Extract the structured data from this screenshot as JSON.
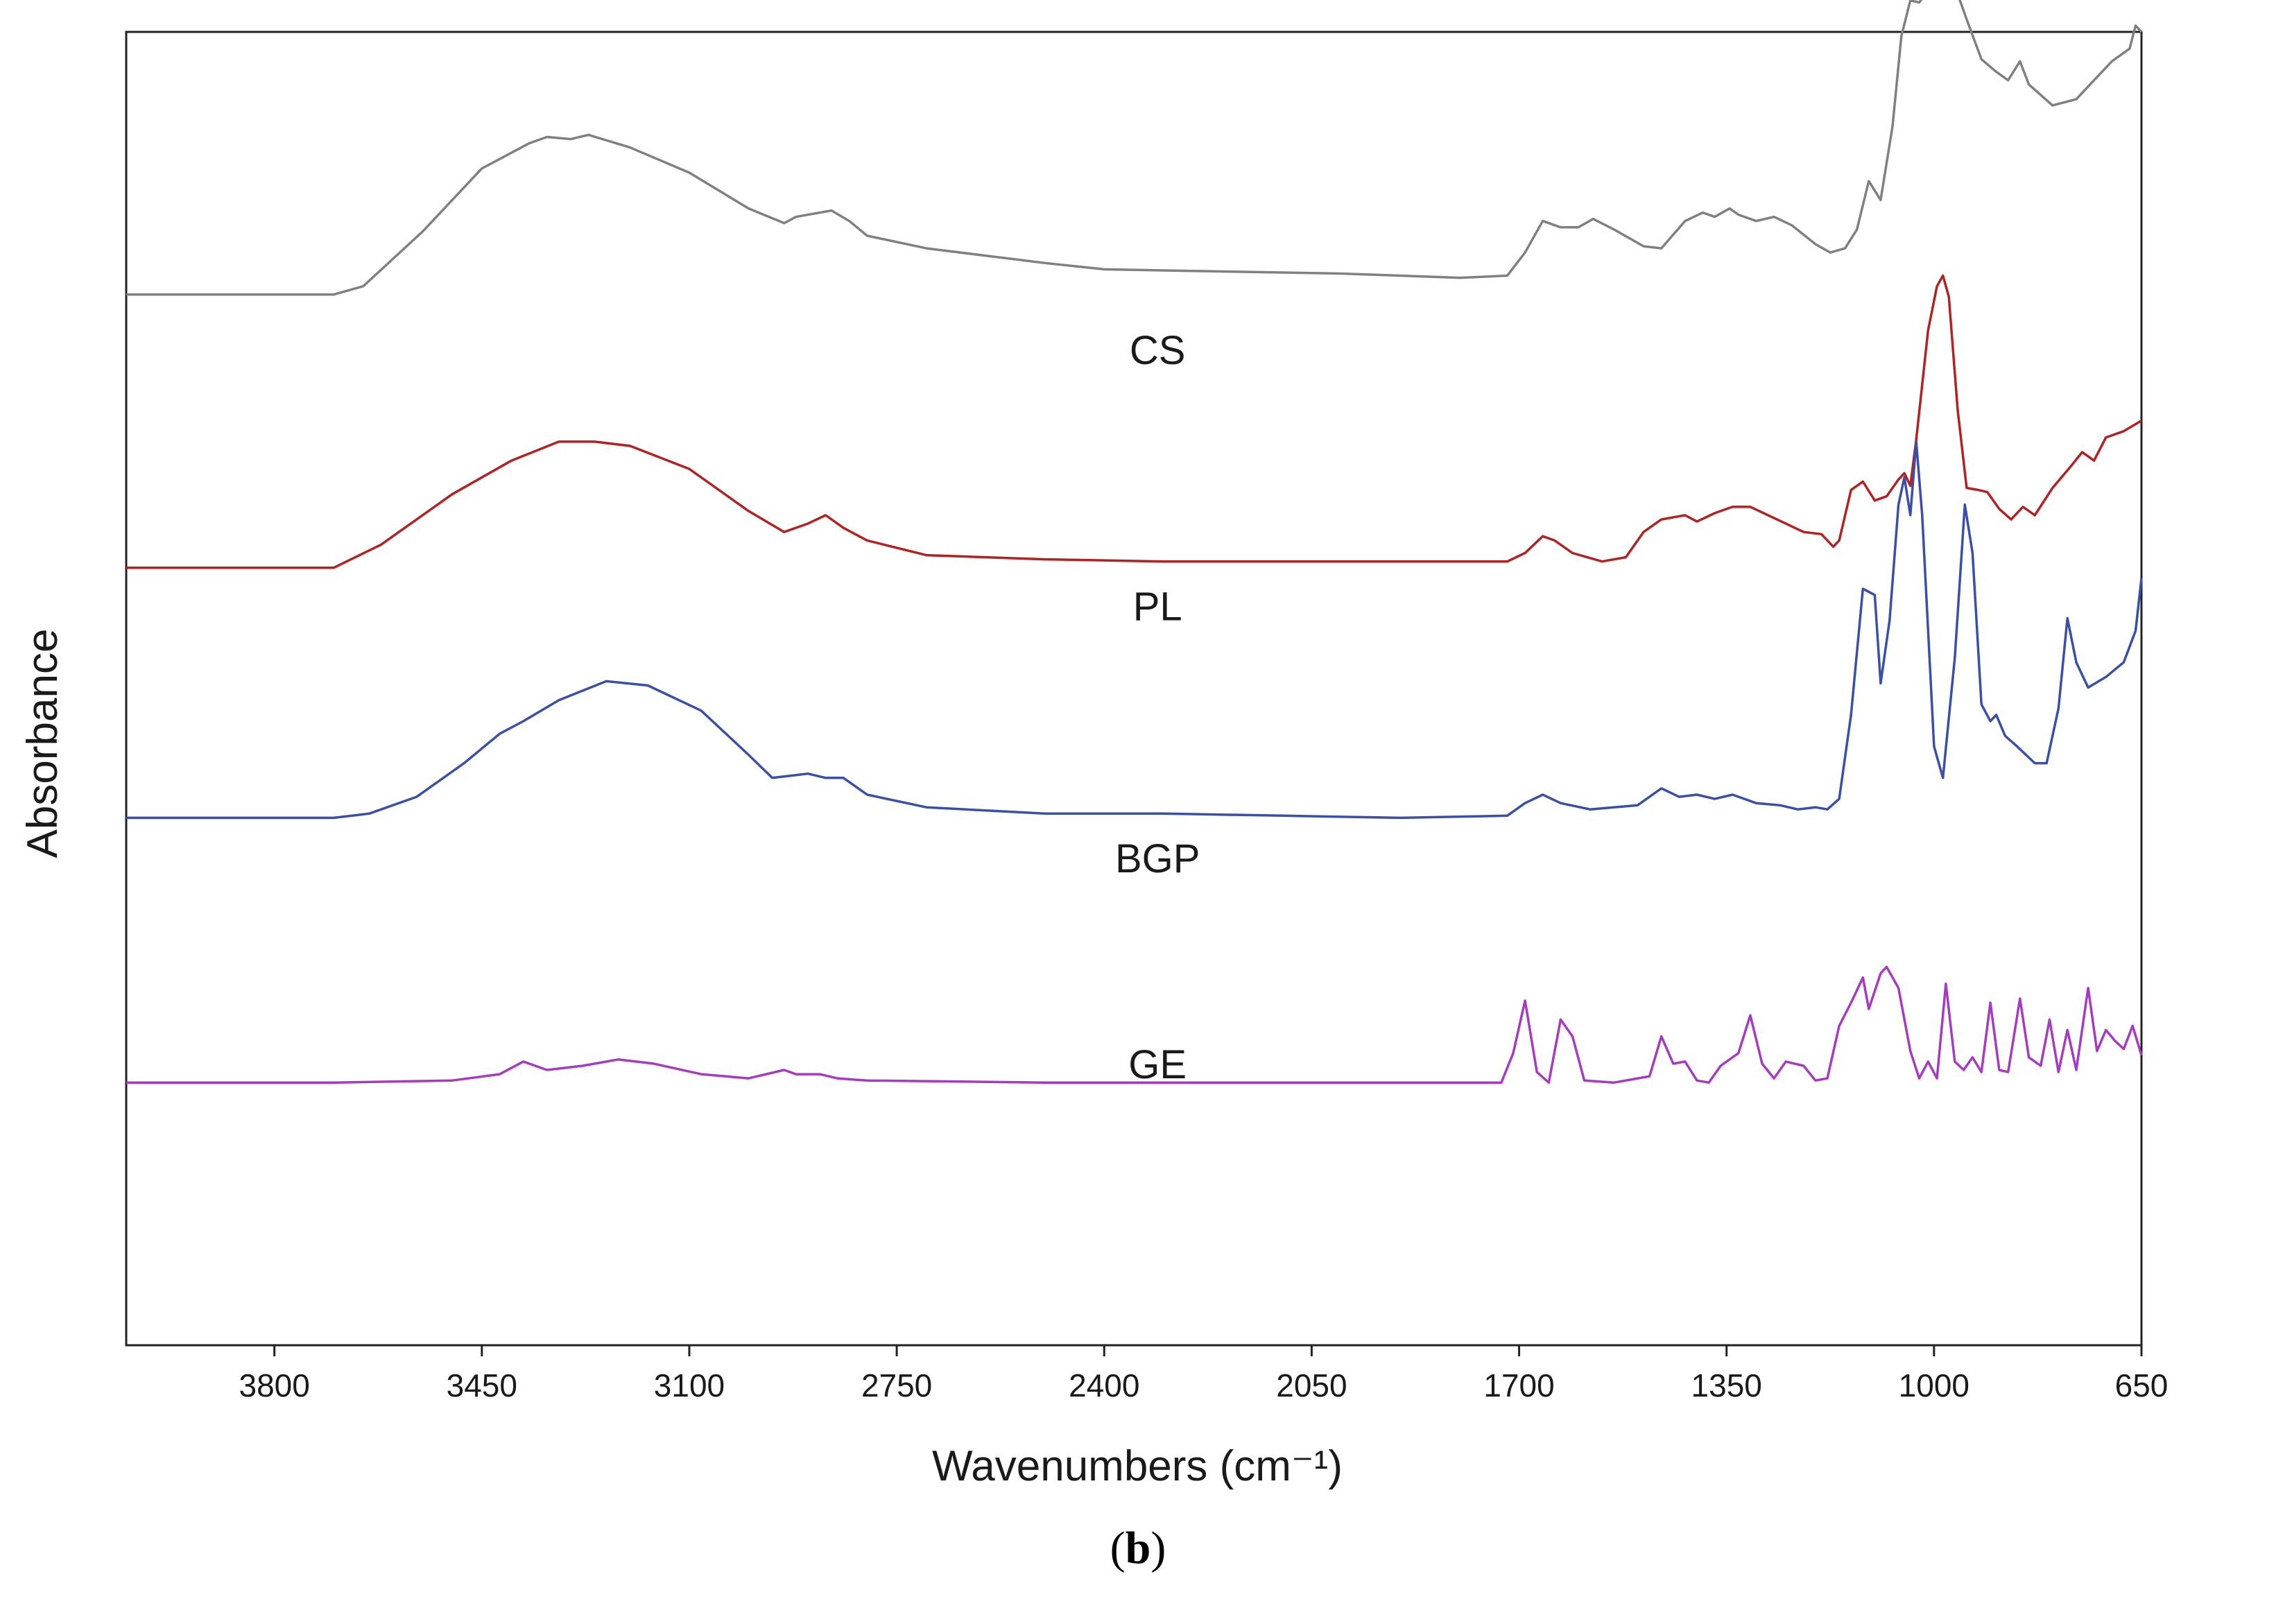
{
  "chart_data": {
    "type": "line",
    "title": "",
    "xlabel": "Wavenumbers (cm⁻¹)",
    "ylabel": "Absorbance",
    "xlim": [
      4050,
      650
    ],
    "x_reversed": true,
    "ylim": [
      -1.25,
      5.0
    ],
    "x_ticks": [
      3800,
      3450,
      3100,
      2750,
      2400,
      2050,
      1700,
      1350,
      1000,
      650
    ],
    "grid": false,
    "legend": "inline labels",
    "caption": "b",
    "series": [
      {
        "name": "CS",
        "label": "CS",
        "color": "#808080",
        "label_pos": [
          2310,
          3.42
        ],
        "points": [
          [
            4050,
            3.75
          ],
          [
            3880,
            3.75
          ],
          [
            3700,
            3.75
          ],
          [
            3650,
            3.79
          ],
          [
            3550,
            4.05
          ],
          [
            3450,
            4.35
          ],
          [
            3370,
            4.47
          ],
          [
            3340,
            4.5
          ],
          [
            3300,
            4.49
          ],
          [
            3270,
            4.51
          ],
          [
            3200,
            4.45
          ],
          [
            3100,
            4.33
          ],
          [
            3000,
            4.16
          ],
          [
            2940,
            4.09
          ],
          [
            2920,
            4.12
          ],
          [
            2860,
            4.15
          ],
          [
            2830,
            4.1
          ],
          [
            2800,
            4.03
          ],
          [
            2700,
            3.97
          ],
          [
            2500,
            3.9
          ],
          [
            2400,
            3.87
          ],
          [
            2200,
            3.86
          ],
          [
            2000,
            3.85
          ],
          [
            1800,
            3.83
          ],
          [
            1720,
            3.84
          ],
          [
            1690,
            3.95
          ],
          [
            1660,
            4.1
          ],
          [
            1630,
            4.07
          ],
          [
            1600,
            4.07
          ],
          [
            1575,
            4.11
          ],
          [
            1540,
            4.06
          ],
          [
            1490,
            3.98
          ],
          [
            1460,
            3.97
          ],
          [
            1420,
            4.1
          ],
          [
            1390,
            4.14
          ],
          [
            1370,
            4.12
          ],
          [
            1345,
            4.16
          ],
          [
            1330,
            4.13
          ],
          [
            1300,
            4.1
          ],
          [
            1270,
            4.12
          ],
          [
            1240,
            4.08
          ],
          [
            1200,
            3.99
          ],
          [
            1175,
            3.95
          ],
          [
            1150,
            3.97
          ],
          [
            1130,
            4.06
          ],
          [
            1110,
            4.29
          ],
          [
            1090,
            4.2
          ],
          [
            1070,
            4.55
          ],
          [
            1055,
            4.98
          ],
          [
            1040,
            5.15
          ],
          [
            1025,
            5.14
          ],
          [
            1010,
            5.2
          ],
          [
            995,
            5.27
          ],
          [
            980,
            5.23
          ],
          [
            960,
            5.18
          ],
          [
            945,
            5.06
          ],
          [
            920,
            4.87
          ],
          [
            895,
            4.81
          ],
          [
            875,
            4.77
          ],
          [
            855,
            4.86
          ],
          [
            840,
            4.75
          ],
          [
            800,
            4.65
          ],
          [
            760,
            4.68
          ],
          [
            700,
            4.86
          ],
          [
            670,
            4.92
          ],
          [
            660,
            5.03
          ],
          [
            650,
            5.0
          ]
        ]
      },
      {
        "name": "PL",
        "label": "PL",
        "color": "#b22222",
        "label_pos": [
          2310,
          2.2
        ],
        "points": [
          [
            4050,
            2.45
          ],
          [
            3700,
            2.45
          ],
          [
            3620,
            2.56
          ],
          [
            3500,
            2.8
          ],
          [
            3400,
            2.96
          ],
          [
            3320,
            3.05
          ],
          [
            3260,
            3.05
          ],
          [
            3200,
            3.03
          ],
          [
            3100,
            2.92
          ],
          [
            3000,
            2.72
          ],
          [
            2940,
            2.62
          ],
          [
            2900,
            2.66
          ],
          [
            2870,
            2.7
          ],
          [
            2840,
            2.64
          ],
          [
            2800,
            2.58
          ],
          [
            2700,
            2.51
          ],
          [
            2500,
            2.49
          ],
          [
            2300,
            2.48
          ],
          [
            2100,
            2.48
          ],
          [
            1900,
            2.48
          ],
          [
            1720,
            2.48
          ],
          [
            1690,
            2.52
          ],
          [
            1660,
            2.6
          ],
          [
            1640,
            2.58
          ],
          [
            1610,
            2.52
          ],
          [
            1560,
            2.48
          ],
          [
            1520,
            2.5
          ],
          [
            1490,
            2.62
          ],
          [
            1460,
            2.68
          ],
          [
            1420,
            2.7
          ],
          [
            1400,
            2.67
          ],
          [
            1370,
            2.71
          ],
          [
            1340,
            2.74
          ],
          [
            1310,
            2.74
          ],
          [
            1280,
            2.7
          ],
          [
            1250,
            2.66
          ],
          [
            1220,
            2.62
          ],
          [
            1190,
            2.61
          ],
          [
            1170,
            2.55
          ],
          [
            1160,
            2.58
          ],
          [
            1140,
            2.82
          ],
          [
            1120,
            2.86
          ],
          [
            1100,
            2.77
          ],
          [
            1080,
            2.79
          ],
          [
            1060,
            2.87
          ],
          [
            1050,
            2.9
          ],
          [
            1040,
            2.84
          ],
          [
            1030,
            3.06
          ],
          [
            1010,
            3.58
          ],
          [
            995,
            3.79
          ],
          [
            985,
            3.84
          ],
          [
            975,
            3.74
          ],
          [
            960,
            3.2
          ],
          [
            945,
            2.83
          ],
          [
            925,
            2.82
          ],
          [
            910,
            2.81
          ],
          [
            890,
            2.73
          ],
          [
            870,
            2.68
          ],
          [
            850,
            2.74
          ],
          [
            830,
            2.7
          ],
          [
            800,
            2.83
          ],
          [
            770,
            2.93
          ],
          [
            750,
            3.0
          ],
          [
            730,
            2.96
          ],
          [
            710,
            3.07
          ],
          [
            680,
            3.1
          ],
          [
            650,
            3.15
          ]
        ]
      },
      {
        "name": "BGP",
        "label": "BGP",
        "color": "#3a4fa8",
        "label_pos": [
          2310,
          1.0
        ],
        "points": [
          [
            4050,
            1.26
          ],
          [
            3700,
            1.26
          ],
          [
            3640,
            1.28
          ],
          [
            3560,
            1.36
          ],
          [
            3480,
            1.52
          ],
          [
            3420,
            1.66
          ],
          [
            3380,
            1.72
          ],
          [
            3320,
            1.82
          ],
          [
            3240,
            1.91
          ],
          [
            3170,
            1.89
          ],
          [
            3080,
            1.77
          ],
          [
            3000,
            1.56
          ],
          [
            2960,
            1.45
          ],
          [
            2930,
            1.46
          ],
          [
            2900,
            1.47
          ],
          [
            2870,
            1.45
          ],
          [
            2840,
            1.45
          ],
          [
            2800,
            1.37
          ],
          [
            2700,
            1.31
          ],
          [
            2500,
            1.28
          ],
          [
            2300,
            1.28
          ],
          [
            2100,
            1.27
          ],
          [
            1900,
            1.26
          ],
          [
            1720,
            1.27
          ],
          [
            1690,
            1.33
          ],
          [
            1660,
            1.37
          ],
          [
            1630,
            1.33
          ],
          [
            1580,
            1.3
          ],
          [
            1500,
            1.32
          ],
          [
            1460,
            1.4
          ],
          [
            1430,
            1.36
          ],
          [
            1400,
            1.37
          ],
          [
            1370,
            1.35
          ],
          [
            1340,
            1.37
          ],
          [
            1300,
            1.33
          ],
          [
            1260,
            1.32
          ],
          [
            1230,
            1.3
          ],
          [
            1200,
            1.31
          ],
          [
            1180,
            1.3
          ],
          [
            1160,
            1.35
          ],
          [
            1140,
            1.75
          ],
          [
            1120,
            2.35
          ],
          [
            1100,
            2.32
          ],
          [
            1090,
            1.9
          ],
          [
            1075,
            2.2
          ],
          [
            1060,
            2.75
          ],
          [
            1050,
            2.88
          ],
          [
            1040,
            2.7
          ],
          [
            1030,
            3.05
          ],
          [
            1020,
            2.7
          ],
          [
            1000,
            1.6
          ],
          [
            985,
            1.45
          ],
          [
            965,
            2.02
          ],
          [
            948,
            2.75
          ],
          [
            935,
            2.52
          ],
          [
            920,
            1.8
          ],
          [
            905,
            1.72
          ],
          [
            895,
            1.75
          ],
          [
            880,
            1.65
          ],
          [
            860,
            1.6
          ],
          [
            830,
            1.52
          ],
          [
            810,
            1.52
          ],
          [
            790,
            1.78
          ],
          [
            775,
            2.21
          ],
          [
            760,
            2.0
          ],
          [
            740,
            1.88
          ],
          [
            710,
            1.93
          ],
          [
            680,
            2.0
          ],
          [
            660,
            2.15
          ],
          [
            650,
            2.4
          ]
        ]
      },
      {
        "name": "GE",
        "label": "GE",
        "color": "#a63bc0",
        "label_pos": [
          2310,
          0.02
        ],
        "points": [
          [
            4050,
            0.0
          ],
          [
            3700,
            0.0
          ],
          [
            3500,
            0.01
          ],
          [
            3420,
            0.04
          ],
          [
            3380,
            0.1
          ],
          [
            3340,
            0.06
          ],
          [
            3280,
            0.08
          ],
          [
            3220,
            0.11
          ],
          [
            3160,
            0.09
          ],
          [
            3080,
            0.04
          ],
          [
            3000,
            0.02
          ],
          [
            2940,
            0.06
          ],
          [
            2920,
            0.04
          ],
          [
            2880,
            0.04
          ],
          [
            2850,
            0.02
          ],
          [
            2800,
            0.01
          ],
          [
            2500,
            0.0
          ],
          [
            2200,
            0.0
          ],
          [
            1900,
            0.0
          ],
          [
            1730,
            0.0
          ],
          [
            1710,
            0.14
          ],
          [
            1690,
            0.39
          ],
          [
            1670,
            0.05
          ],
          [
            1650,
            0.0
          ],
          [
            1630,
            0.3
          ],
          [
            1610,
            0.22
          ],
          [
            1590,
            0.01
          ],
          [
            1540,
            0.0
          ],
          [
            1480,
            0.03
          ],
          [
            1460,
            0.22
          ],
          [
            1440,
            0.09
          ],
          [
            1420,
            0.1
          ],
          [
            1400,
            0.01
          ],
          [
            1380,
            0.0
          ],
          [
            1360,
            0.08
          ],
          [
            1330,
            0.14
          ],
          [
            1310,
            0.32
          ],
          [
            1290,
            0.09
          ],
          [
            1270,
            0.02
          ],
          [
            1250,
            0.1
          ],
          [
            1220,
            0.08
          ],
          [
            1200,
            0.01
          ],
          [
            1180,
            0.02
          ],
          [
            1160,
            0.27
          ],
          [
            1140,
            0.38
          ],
          [
            1120,
            0.5
          ],
          [
            1110,
            0.35
          ],
          [
            1090,
            0.52
          ],
          [
            1080,
            0.55
          ],
          [
            1060,
            0.45
          ],
          [
            1040,
            0.15
          ],
          [
            1025,
            0.02
          ],
          [
            1010,
            0.1
          ],
          [
            995,
            0.02
          ],
          [
            980,
            0.47
          ],
          [
            965,
            0.1
          ],
          [
            950,
            0.06
          ],
          [
            935,
            0.12
          ],
          [
            920,
            0.05
          ],
          [
            905,
            0.38
          ],
          [
            890,
            0.06
          ],
          [
            875,
            0.05
          ],
          [
            855,
            0.4
          ],
          [
            840,
            0.12
          ],
          [
            820,
            0.08
          ],
          [
            805,
            0.3
          ],
          [
            790,
            0.05
          ],
          [
            775,
            0.25
          ],
          [
            760,
            0.06
          ],
          [
            740,
            0.45
          ],
          [
            725,
            0.15
          ],
          [
            710,
            0.25
          ],
          [
            695,
            0.2
          ],
          [
            680,
            0.16
          ],
          [
            665,
            0.27
          ],
          [
            650,
            0.13
          ]
        ]
      }
    ]
  }
}
